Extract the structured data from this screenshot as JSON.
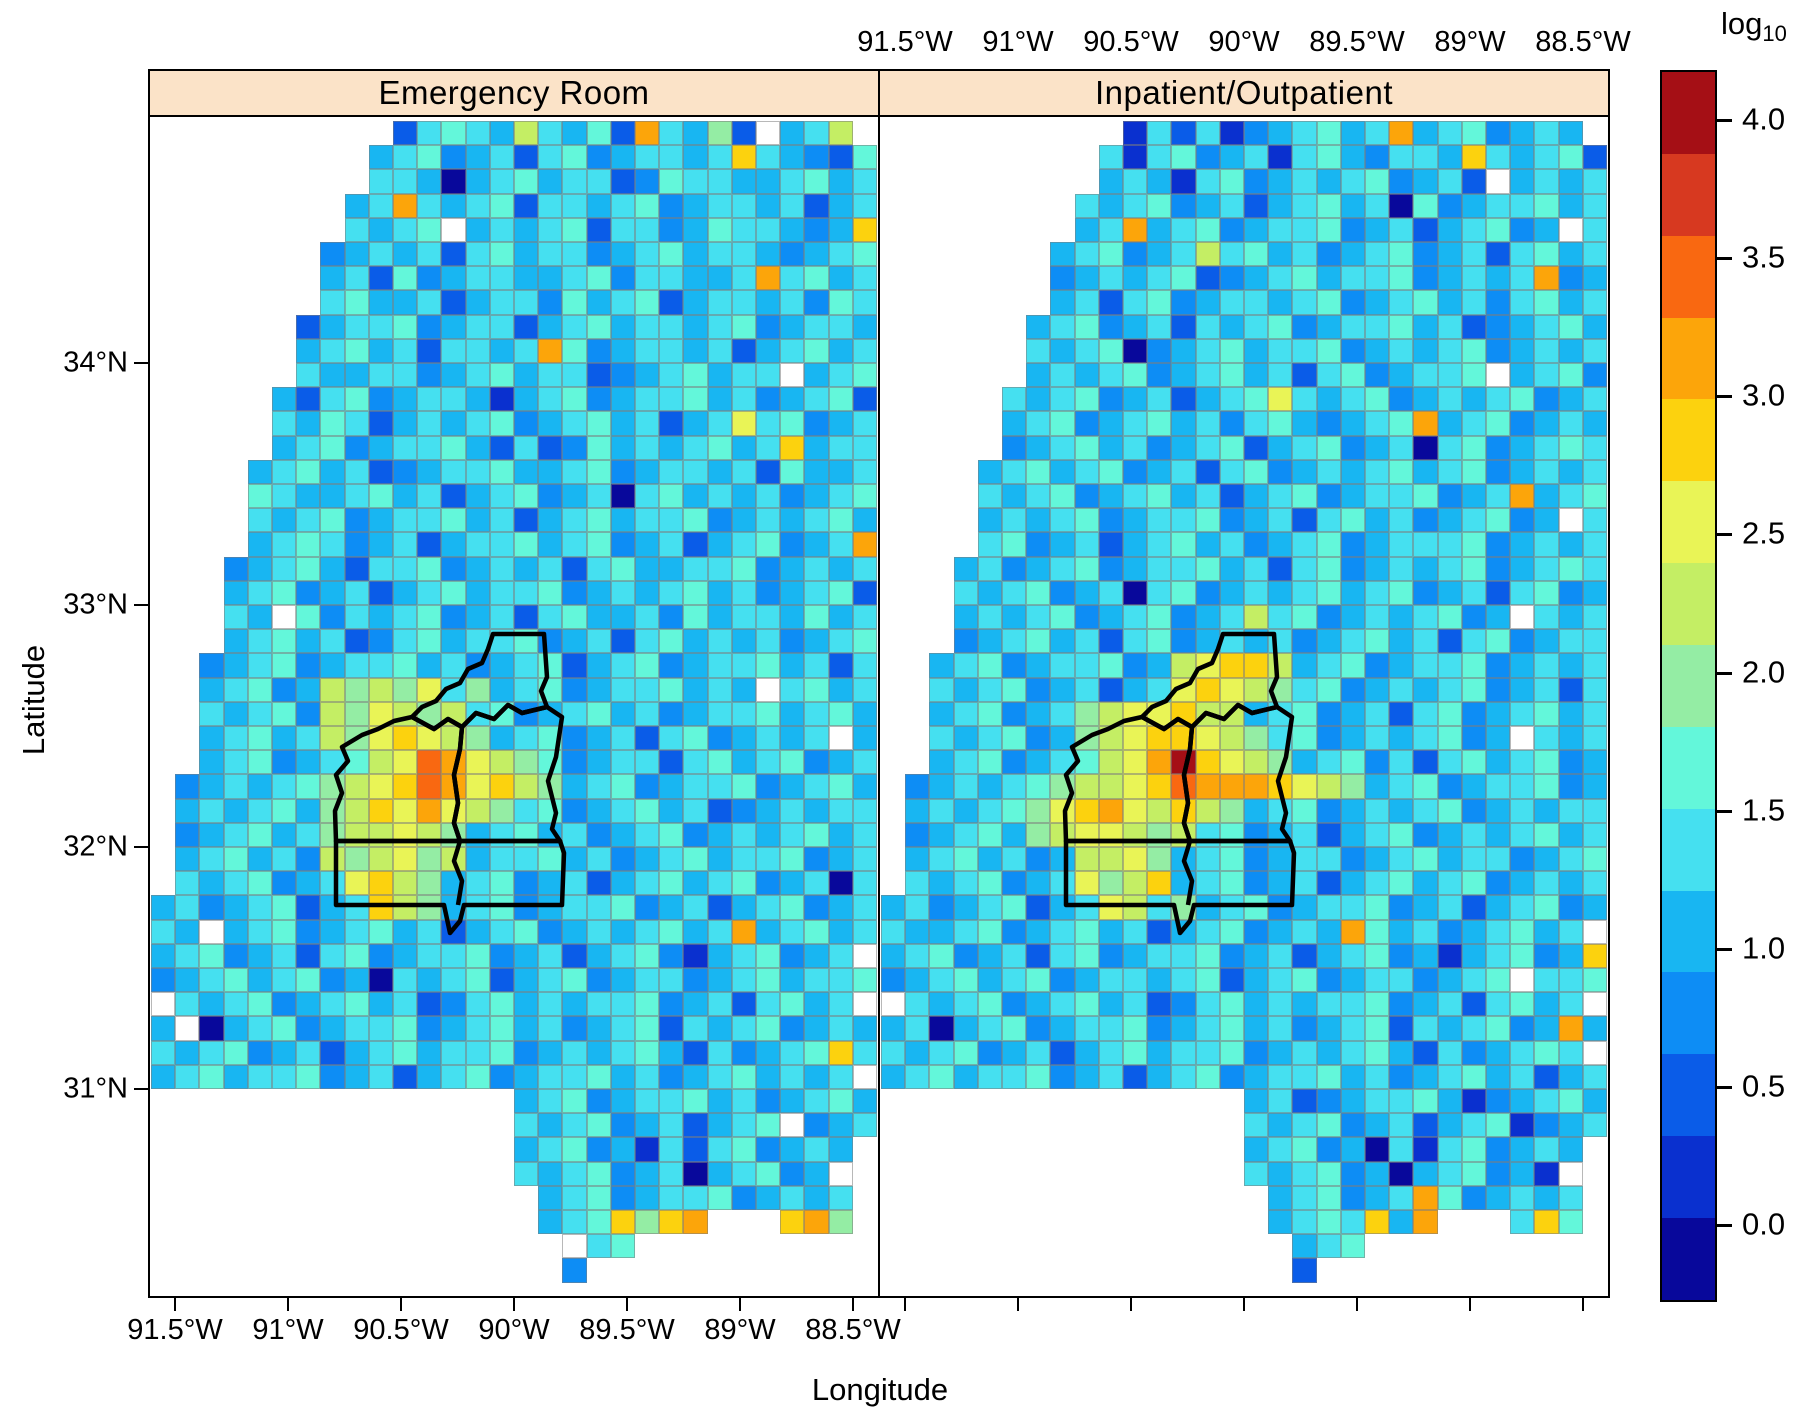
{
  "chart_data": {
    "type": "heatmap",
    "title": "",
    "facets": [
      "Emergency Room",
      "Inpatient/Outpatient"
    ],
    "x": {
      "label": "Longitude",
      "ticks": [
        "91.5°W",
        "91°W",
        "90.5°W",
        "90°W",
        "89.5°W",
        "89°W",
        "88.5°W"
      ],
      "tick_values_deg_west": [
        91.5,
        91.0,
        90.5,
        90.0,
        89.5,
        89.0,
        88.5
      ],
      "bottom_labels_panel": "Emergency Room",
      "top_labels_panel": "Inpatient/Outpatient"
    },
    "y": {
      "label": "Latitude",
      "ticks": [
        "34°N",
        "33°N",
        "32°N",
        "31°N"
      ],
      "tick_values_deg_north": [
        34,
        33,
        32,
        31
      ]
    },
    "legend": {
      "title_main": "log",
      "title_sub": "10",
      "position": "right",
      "tick_labels": [
        "4.0",
        "3.5",
        "3.0",
        "2.5",
        "2.0",
        "1.5",
        "1.0",
        "0.5",
        "0.0"
      ],
      "tick_values": [
        4.0,
        3.5,
        3.0,
        2.5,
        2.0,
        1.5,
        1.0,
        0.5,
        0.0
      ],
      "value_range_approx": [
        -0.3,
        4.2
      ],
      "colors_top_to_bottom": [
        "#a50f15",
        "#d73920",
        "#f96811",
        "#fca50a",
        "#fcd20e",
        "#e9f456",
        "#c4ee64",
        "#94eda4",
        "#63f7da",
        "#45e0f0",
        "#18b6f2",
        "#0d8df5",
        "#0a5ce8",
        "#0a30cf",
        "#08089b"
      ]
    },
    "cell_size_deg": 0.1,
    "palette": {
      "0": "#08089b",
      "1": "#0a30cf",
      "2": "#0a5ce8",
      "3": "#0d8df5",
      "4": "#18b6f2",
      "5": "#45e0f0",
      "6": "#63f7da",
      "7": "#94eda4",
      "8": "#c4ee64",
      "9": "#e9f456",
      "a": "#fcd20e",
      "b": "#fca50a",
      "c": "#f96811",
      "d": "#d73920",
      "e": "#a50f15",
      "w": "#ffffff"
    },
    "level_values_log10": {
      "0": -0.1,
      "1": 0.2,
      "2": 0.5,
      "3": 0.8,
      "4": 1.1,
      "5": 1.4,
      "6": 1.7,
      "7": 2.0,
      "8": 2.3,
      "9": 2.6,
      "a": 2.9,
      "b": 3.1,
      "c": 3.4,
      "d": 3.7,
      "e": 4.0,
      "w": null,
      ".": null
    },
    "grids": [
      {
        "name": "Emergency Room",
        "rows": [
          "..........2565485462b5472w458.",
          ".........456345256345545a54326",
          ".........554045645523655445645",
          "........45b5456255456345545245",
          "........5456w4545625534655434a",
          ".......34545256455345645543456",
          ".......452634554456355445b5645",
          ".......56445245536456245545365",
          "......245563455245645545634554",
          "......4564525545b6345545245645",
          "......54455345645523456455w456",
          ".....4256345541456345564534562",
          ".....5465245456345645245956345",
          ".....456345564252364545645a455",
          "....45645234556445634554526445",
          "....65445645245634505645453456",
          "....54563455645245645563454564",
          "....4565345245564563452456345b",
          "...345642556345452564455634545",
          "...456345245645563454564534562",
          "...54w635456345256445364554645",
          "...456452356455634525645453456",
          "..3456345564534562456345564525",
          "..45634878795745634556454w5645",
          "..5456387987856345645345564564",
          "..45645879a98745634525634545w4",
          "..456345689cb98763455256456345",
          ".345456789acb9a874563455634564",
          ".45456478a9b987563456452345455",
          ".34564578898745645345634545645",
          ".45645387897845564534564556345",
          ".54563459a87456345245645634505",
          "453456245a87456345563452456345",
          "54w456345645245634545645b45645",
          "45634525634556345245631456345w",
          "345645634054562456345534564556",
          "w5456345645235645455634525645w",
          "4w0456345563456453456254563454",
          "5456345245645563454564253456a5",
          "45645563452456345564534564545w",
          "...............456345564534564",
          "...............54563452456w345",
          "...............45634152563454.",
          "...............5456345045634w.",
          "................4563455634545.",
          "................456a7ab...ab7.",
          ".................w56..........",
          ".................3............"
        ]
      },
      {
        "name": "Inpatient/Outpatient",
        "rows": [
          "..........15251345645b4563454.",
          ".........515634515643554a54562",
          ".........4541563454563452w4545",
          "........5456345245645063455645",
          "........45b45634556345245634w5",
          ".......45634585645345634525645",
          ".......34545623456455634545b34",
          ".......45256345545634564535645",
          "......456345254563455645234564",
          "......545603456455634545634545",
          "......4545634564525634556w4563",
          ".....5456345245695456345456345",
          ".....45634564535643456b4563454",
          ".....3456453456245634505634565",
          "....45645634525634545645634545",
          "....5456345645245634556345b456",
          "....454563455634525645345634w5",
          "....56345245645345634555634545",
          "...453456345564525634545634565",
          "...545634505634545645634525634",
          "...45456345634585634545634w545",
          "...345645256345453456452563455",
          "..456345563489aa84563455634545",
          "..54563452459a9875634545634525",
          "..4563457899a88456345256345645",
          "..545634789aa9875634545634w545",
          "..456345689bea9874563525645634",
          ".3454567889acbbba9874563455634",
          ".4545679ab98a87456345456345455",
          ".34564789987856345245634545645",
          ".45645348897456345534564553456",
          ".5456345978a456345245645634545",
          "453456245985745634556345245634",
          "5445634564524563454b645345645w",
          "45634525634556345245634145634a",
          "34564563455456245634553456w556",
          "w5456345645235645455634525645w",
          "4504563455634564534562545634b4",
          "54563452456455634545642534565w",
          "456455634524563455645345645245",
          "...............452345564134564",
          "...............545634524561345",
          "...............45634051563454.",
          "...............5456340456341w.",
          "................456345b634545.",
          "................4565a4b...5a6.",
          ".................456..........",
          ".................2............"
        ]
      }
    ],
    "county_overlay": {
      "description_visible": "black county boundary outlines drawn over central-west region of each map",
      "stroke": "#000000",
      "paths": [
        "M343,517 L394,517 L397,560 L391,574 L397,590 L372,596 L358,588 L344,602 L326,596 L312,610 L298,602 L284,612 L262,600 L272,590 L286,584 L296,572 L310,566 L318,552 L332,546 L338,532 Z",
        "M262,600 L284,612 L298,602 L312,610 L310,632 L304,658 L308,686 L304,706 L310,724 L186,724 L185,694 L192,676 L186,658 L198,644 L192,630 L212,618 L228,612 L244,604 Z",
        "M397,590 L412,600 L406,640 L398,664 L406,696 L402,712 L410,724 L310,724 L304,706 L308,686 L304,658 L310,632 L312,610 L326,596 L344,602 L358,588 L372,596 Z",
        "M186,724 L410,724 L414,736 L412,788 L314,788 L310,804 L300,816 L294,788 L186,788 Z",
        "M310,724 L304,744 L312,764 L308,788"
      ]
    },
    "grid_on": false,
    "style": {
      "strip_bg": "#fbe3c8",
      "cell_border": "#7d7d7d",
      "panel_border": "#000000",
      "background": "#ffffff"
    }
  }
}
